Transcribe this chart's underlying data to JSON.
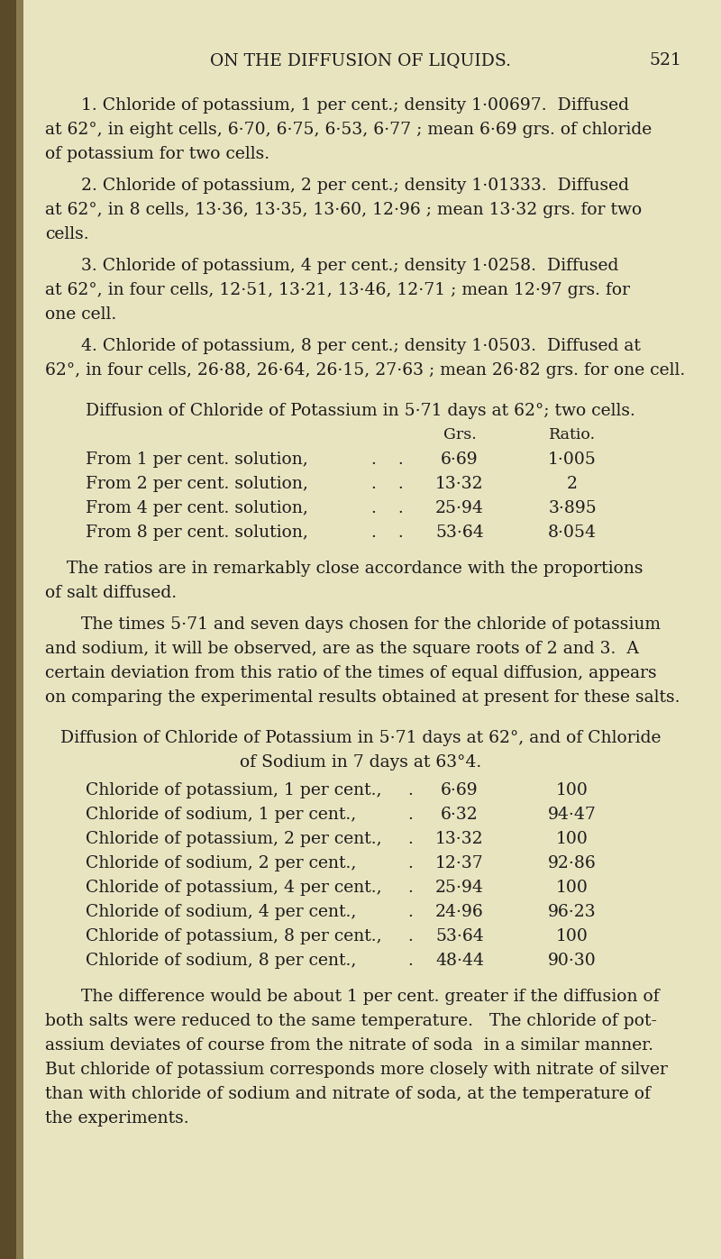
{
  "bg_color": "#e8e4c0",
  "text_color": "#1c1c1c",
  "left_border_color": "#3a3020",
  "page_title": "ON THE DIFFUSION OF LIQUIDS.",
  "page_number": "521",
  "para1": "1. Chloride of potassium, 1 per cent.; density 1·00697.  Diffused at 62°, in eight cells, 6·70, 6·75, 6·53, 6·77 ; mean 6·69 grs. of chloride of potassium for two cells.",
  "para2": "2. Chloride of potassium, 2 per cent.; density 1·01333.  Diffused at 62°, in 8 cells, 13·36, 13·35, 13·60, 12·96 ; mean 13·32 grs. for two cells.",
  "para3": "3. Chloride of potassium, 4 per cent.; density 1·0258.  Diffused at 62°, in four cells, 12·51, 13·21, 13·46, 12·71 ; mean 12·97 grs. for one cell.",
  "para4": "4. Chloride of potassium, 8 per cent.; density 1·0503.  Diffused at 62°, in four cells, 26·88, 26·64, 26·15, 27·63 ; mean 26·82 grs. for one cell.",
  "section1_title": "Diffusion of Chloride of Potassium in 5·71 days at 62°; two cells.",
  "table1_header_col2": "Grs.",
  "table1_header_col3": "Ratio.",
  "table1_rows": [
    [
      "From 1 per cent. solution,",
      "6·69",
      "1·005"
    ],
    [
      "From 2 per cent. solution,",
      "13·32",
      "2"
    ],
    [
      "From 4 per cent. solution,",
      "25·94",
      "3·895"
    ],
    [
      "From 8 per cent. solution,",
      "53·64",
      "8·054"
    ]
  ],
  "para5": "The ratios are in remarkably close accordance with the proportions of salt diffused.",
  "para6": "The times 5·71 and seven days chosen for the chloride of potassium and sodium, it will be observed, are as the square roots of 2 and 3.  A certain deviation from this ratio of the times of equal diffusion, appears on comparing the experimental results obtained at present for these salts.",
  "section2_line1": "Diffusion of Chloride of Potassium in 5·71 days at 62°, and of Chloride",
  "section2_line2": "of Sodium in 7 days at 63°4.",
  "table2_rows": [
    [
      "Chloride of potassium, 1 per cent.,",
      "6·69",
      "100"
    ],
    [
      "Chloride of sodium, 1 per cent.,",
      "6·32",
      "94·47"
    ],
    [
      "Chloride of potassium, 2 per cent.,",
      "13·32",
      "100"
    ],
    [
      "Chloride of sodium, 2 per cent.,",
      "12·37",
      "92·86"
    ],
    [
      "Chloride of potassium, 4 per cent.,",
      "25·94",
      "100"
    ],
    [
      "Chloride of sodium, 4 per cent.,",
      "24·96",
      "96·23"
    ],
    [
      "Chloride of potassium, 8 per cent.,",
      "53·64",
      "100"
    ],
    [
      "Chloride of sodium, 8 per cent.,",
      "48·44",
      "90·30"
    ]
  ],
  "para7a": "The difference would be about 1 per cent. greater if the diffusion of both salts were reduced to the same temperature.   The chloride of pot-",
  "para7b": "assium deviates of course from the nitrate of soda  in a similar manner. But chloride of potassium corresponds more closely with nitrate of silver than with chloride of sodium and nitrate of soda, at the temperature of the experiments."
}
